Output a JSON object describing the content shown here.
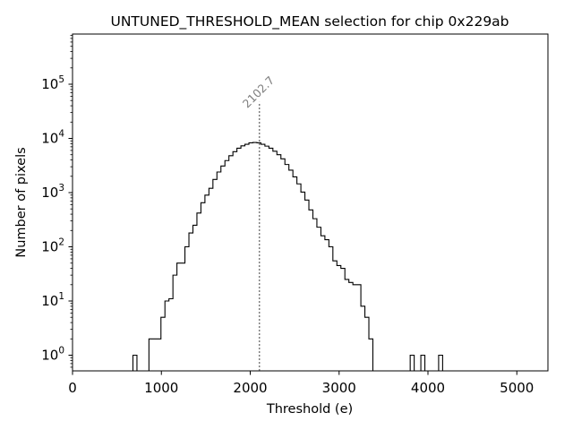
{
  "chart_data": {
    "type": "histogram",
    "title": "UNTUNED_THRESHOLD_MEAN selection for chip 0x229ab",
    "xlabel": "Threshold (e)",
    "ylabel": "Number of pixels",
    "xlim": [
      0,
      5350
    ],
    "ylim": [
      0.5,
      800000
    ],
    "yscale": "log",
    "grid": false,
    "x_ticks": [
      0,
      1000,
      2000,
      3000,
      4000,
      5000
    ],
    "x_tick_labels": [
      "0",
      "1000",
      "2000",
      "3000",
      "4000",
      "5000"
    ],
    "y_ticks": [
      1,
      10,
      100,
      1000,
      10000,
      100000
    ],
    "y_tick_labels": [
      {
        "base": "10",
        "exp": "0"
      },
      {
        "base": "10",
        "exp": "1"
      },
      {
        "base": "10",
        "exp": "2"
      },
      {
        "base": "10",
        "exp": "3"
      },
      {
        "base": "10",
        "exp": "4"
      },
      {
        "base": "10",
        "exp": "5"
      }
    ],
    "bin_width": 45,
    "bin_start": 680,
    "counts": [
      1,
      0,
      0,
      0,
      2,
      2,
      2,
      5,
      10,
      11,
      30,
      50,
      50,
      100,
      180,
      250,
      420,
      650,
      900,
      1200,
      1750,
      2400,
      3100,
      3900,
      4800,
      5700,
      6600,
      7300,
      7800,
      8300,
      8400,
      8300,
      7800,
      7200,
      6600,
      5800,
      5000,
      4200,
      3300,
      2600,
      1950,
      1450,
      1020,
      730,
      480,
      330,
      230,
      160,
      135,
      100,
      55,
      45,
      40,
      25,
      22,
      20,
      20,
      8,
      5,
      2,
      0,
      0,
      0,
      0,
      0,
      0,
      0,
      0,
      0,
      0,
      0,
      0,
      0,
      0,
      0,
      0,
      0,
      0,
      0,
      0,
      0,
      0,
      0,
      0,
      0
    ],
    "outliers": [
      3800,
      3920,
      4120
    ],
    "outlier_count": 1,
    "mean_line": {
      "value": 2102.7,
      "label": "2102.7",
      "top_count": 47000
    }
  }
}
